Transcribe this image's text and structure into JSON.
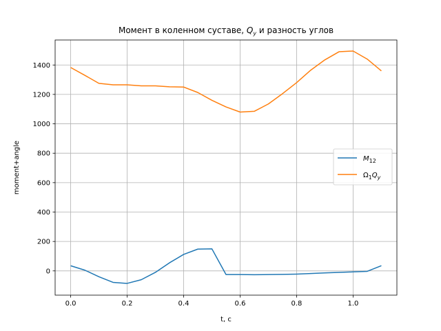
{
  "chart_data": {
    "type": "line",
    "title": "Момент в коленном суставе, Q_y и разность углов",
    "xlabel": "t, c",
    "ylabel": "moment+angle",
    "xlim": [
      -0.055,
      1.155
    ],
    "ylim": [
      -165,
      1570
    ],
    "xticks": [
      "0.0",
      "0.2",
      "0.4",
      "0.6",
      "0.8",
      "1.0"
    ],
    "xtick_values": [
      0.0,
      0.2,
      0.4,
      0.6,
      0.8,
      1.0
    ],
    "yticks": [
      "0",
      "200",
      "400",
      "600",
      "800",
      "1000",
      "1200",
      "1400"
    ],
    "ytick_values": [
      0,
      200,
      400,
      600,
      800,
      1000,
      1200,
      1400
    ],
    "grid": true,
    "legend_position": "center-right",
    "x": [
      0.0,
      0.05,
      0.1,
      0.15,
      0.2,
      0.25,
      0.3,
      0.35,
      0.4,
      0.45,
      0.5,
      0.55,
      0.6,
      0.65,
      0.7,
      0.75,
      0.8,
      0.85,
      0.9,
      0.95,
      1.0,
      1.05,
      1.1
    ],
    "series": [
      {
        "name": "M_12",
        "color": "#1f77b4",
        "values": [
          35,
          5,
          -40,
          -78,
          -85,
          -60,
          -10,
          55,
          112,
          148,
          150,
          -25,
          -25,
          -26,
          -25,
          -24,
          -22,
          -18,
          -14,
          -10,
          -7,
          -3,
          35
        ]
      },
      {
        "name": "Ω_1 Q_y",
        "color": "#ff7f0e",
        "values": [
          1383,
          1330,
          1275,
          1265,
          1265,
          1258,
          1258,
          1252,
          1250,
          1213,
          1160,
          1115,
          1080,
          1085,
          1135,
          1205,
          1280,
          1365,
          1435,
          1490,
          1495,
          1440,
          1360
        ]
      }
    ]
  }
}
